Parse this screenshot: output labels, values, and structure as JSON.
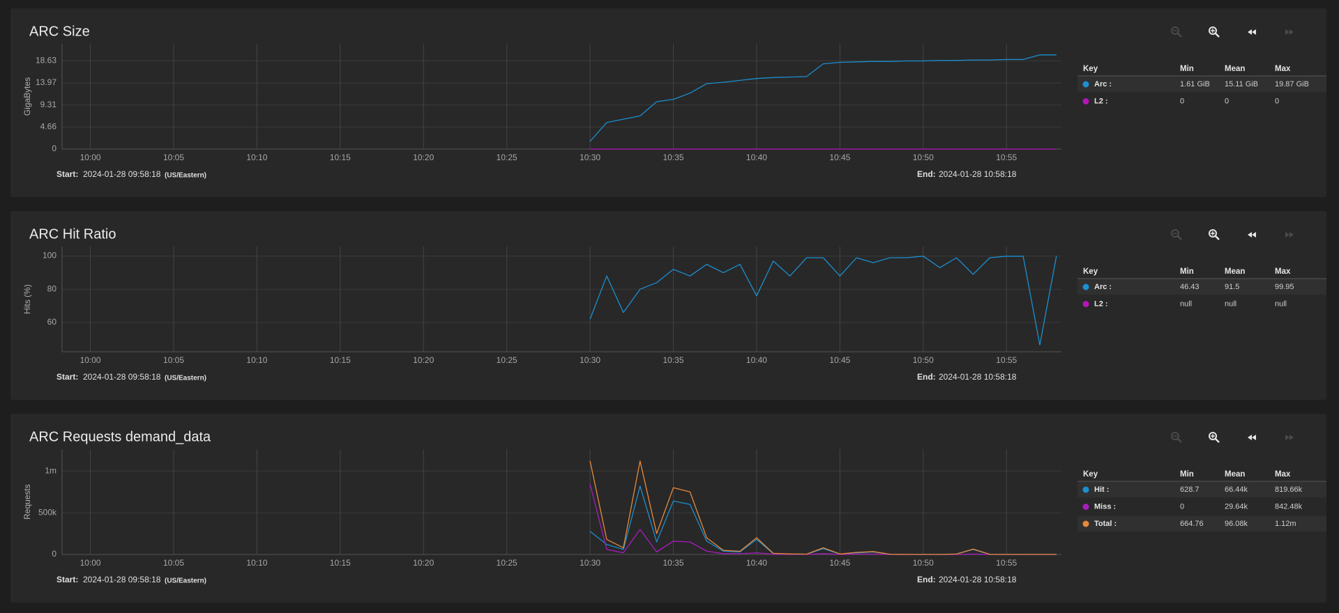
{
  "chart_data": [
    {
      "type": "line",
      "title": "ARC Size",
      "y_label": "GigaBytes",
      "x": [
        "10:30",
        "10:31",
        "10:32",
        "10:33",
        "10:34",
        "10:35",
        "10:36",
        "10:37",
        "10:38",
        "10:39",
        "10:40",
        "10:41",
        "10:42",
        "10:43",
        "10:44",
        "10:45",
        "10:46",
        "10:47",
        "10:48",
        "10:49",
        "10:50",
        "10:51",
        "10:52",
        "10:53",
        "10:54",
        "10:55",
        "10:56",
        "10:57",
        "10:58"
      ],
      "xlim": [
        "09:58:18",
        "10:58:18"
      ],
      "xticks": [
        "10:00",
        "10:05",
        "10:10",
        "10:15",
        "10:20",
        "10:25",
        "10:30",
        "10:35",
        "10:40",
        "10:45",
        "10:50",
        "10:55"
      ],
      "ylim": [
        0,
        22.2
      ],
      "yticks": [
        0,
        4.66,
        9.31,
        13.97,
        18.63
      ],
      "grid": true,
      "legend_header": [
        "Key",
        "Min",
        "Mean",
        "Max"
      ],
      "series": [
        {
          "name": "Arc :",
          "color": "#1b8fd0",
          "min": "1.61 GiB",
          "mean": "15.11 GiB",
          "max": "19.87 GiB",
          "values": [
            1.61,
            5.6,
            6.3,
            7.0,
            10.0,
            10.5,
            11.8,
            13.8,
            14.1,
            14.5,
            14.9,
            15.1,
            15.2,
            15.3,
            18.0,
            18.3,
            18.4,
            18.5,
            18.5,
            18.6,
            18.6,
            18.7,
            18.7,
            18.8,
            18.8,
            18.9,
            18.9,
            19.87,
            19.87
          ]
        },
        {
          "name": "L2 :",
          "color": "#b316b8",
          "min": "0",
          "mean": "0",
          "max": "0",
          "values": [
            0,
            0,
            0,
            0,
            0,
            0,
            0,
            0,
            0,
            0,
            0,
            0,
            0,
            0,
            0,
            0,
            0,
            0,
            0,
            0,
            0,
            0,
            0,
            0,
            0,
            0,
            0,
            0,
            0
          ]
        }
      ],
      "start_label": "Start:",
      "start": "2024-01-28 09:58:18",
      "timezone": "(US/Eastern)",
      "end_label": "End:",
      "end": "2024-01-28 10:58:18"
    },
    {
      "type": "line",
      "title": "ARC Hit Ratio",
      "y_label": "Hits (%)",
      "x": [
        "10:30",
        "10:31",
        "10:32",
        "10:33",
        "10:34",
        "10:35",
        "10:36",
        "10:37",
        "10:38",
        "10:39",
        "10:40",
        "10:41",
        "10:42",
        "10:43",
        "10:44",
        "10:45",
        "10:46",
        "10:47",
        "10:48",
        "10:49",
        "10:50",
        "10:51",
        "10:52",
        "10:53",
        "10:54",
        "10:55",
        "10:56",
        "10:57",
        "10:58"
      ],
      "xlim": [
        "09:58:18",
        "10:58:18"
      ],
      "xticks": [
        "10:00",
        "10:05",
        "10:10",
        "10:15",
        "10:20",
        "10:25",
        "10:30",
        "10:35",
        "10:40",
        "10:45",
        "10:50",
        "10:55"
      ],
      "ylim": [
        42.3,
        105.7
      ],
      "yticks": [
        60,
        80,
        100
      ],
      "grid": true,
      "legend_header": [
        "Key",
        "Min",
        "Mean",
        "Max"
      ],
      "series": [
        {
          "name": "Arc :",
          "color": "#1b8fd0",
          "min": "46.43",
          "mean": "91.5",
          "max": "99.95",
          "values": [
            62,
            88,
            66,
            80,
            84,
            92,
            88,
            95,
            90,
            95,
            76,
            97,
            88,
            99,
            99,
            88,
            99,
            96,
            99,
            99,
            99.95,
            93,
            99,
            89,
            99,
            99.9,
            99.9,
            46.43,
            99.9
          ]
        },
        {
          "name": "L2 :",
          "color": "#b316b8",
          "min": "null",
          "mean": "null",
          "max": "null",
          "values": [
            null,
            null,
            null,
            null,
            null,
            null,
            null,
            null,
            null,
            null,
            null,
            null,
            null,
            null,
            null,
            null,
            null,
            null,
            null,
            null,
            null,
            null,
            null,
            null,
            null,
            null,
            null,
            null,
            null
          ]
        }
      ],
      "start_label": "Start:",
      "start": "2024-01-28 09:58:18",
      "timezone": "(US/Eastern)",
      "end_label": "End:",
      "end": "2024-01-28 10:58:18"
    },
    {
      "type": "line",
      "title": "ARC Requests demand_data",
      "y_label": "Requests",
      "x": [
        "10:30",
        "10:31",
        "10:32",
        "10:33",
        "10:34",
        "10:35",
        "10:36",
        "10:37",
        "10:38",
        "10:39",
        "10:40",
        "10:41",
        "10:42",
        "10:43",
        "10:44",
        "10:45",
        "10:46",
        "10:47",
        "10:48",
        "10:49",
        "10:50",
        "10:51",
        "10:52",
        "10:53",
        "10:54",
        "10:55",
        "10:56",
        "10:57",
        "10:58"
      ],
      "xlim": [
        "09:58:18",
        "10:58:18"
      ],
      "xticks": [
        "10:00",
        "10:05",
        "10:10",
        "10:15",
        "10:20",
        "10:25",
        "10:30",
        "10:35",
        "10:40",
        "10:45",
        "10:50",
        "10:55"
      ],
      "ylim": [
        0,
        1260000
      ],
      "yticks": [
        0,
        {
          "value": 500000,
          "label": "500k"
        },
        {
          "value": 1000000,
          "label": "1m"
        }
      ],
      "grid": true,
      "legend_header": [
        "Key",
        "Min",
        "Mean",
        "Max"
      ],
      "series": [
        {
          "name": "Hit :",
          "color": "#1b8fd0",
          "min": "628.7",
          "mean": "66.44k",
          "max": "819.66k",
          "values": [
            277520,
            120000,
            60000,
            819660,
            150000,
            640000,
            600000,
            160000,
            40000,
            30000,
            180000,
            10000,
            5000,
            3000,
            70000,
            5000,
            20000,
            30000,
            3000,
            1000,
            800,
            700,
            5000,
            60000,
            2000,
            1000,
            700,
            628.7,
            700
          ]
        },
        {
          "name": "Miss :",
          "color": "#a91cc0",
          "min": "0",
          "mean": "29.64k",
          "max": "842.48k",
          "values": [
            842480,
            60000,
            20000,
            300000,
            30000,
            160000,
            150000,
            40000,
            10000,
            8000,
            20000,
            3000,
            2000,
            1000,
            10000,
            1000,
            5000,
            5000,
            0,
            0,
            0,
            0,
            0,
            5000,
            0,
            0,
            0,
            0,
            0
          ]
        },
        {
          "name": "Total :",
          "color": "#e8893a",
          "min": "664.76",
          "mean": "96.08k",
          "max": "1.12m",
          "values": [
            1120000,
            180000,
            80000,
            1120000,
            250000,
            800000,
            750000,
            200000,
            50000,
            38000,
            200000,
            13000,
            7000,
            4000,
            80000,
            6000,
            25000,
            35000,
            3000,
            1000,
            800,
            700,
            5000,
            65000,
            2000,
            1000,
            700,
            664.76,
            700
          ]
        }
      ],
      "start_label": "Start:",
      "start": "2024-01-28 09:58:18",
      "timezone": "(US/Eastern)",
      "end_label": "End:",
      "end": "2024-01-28 10:58:18"
    }
  ]
}
